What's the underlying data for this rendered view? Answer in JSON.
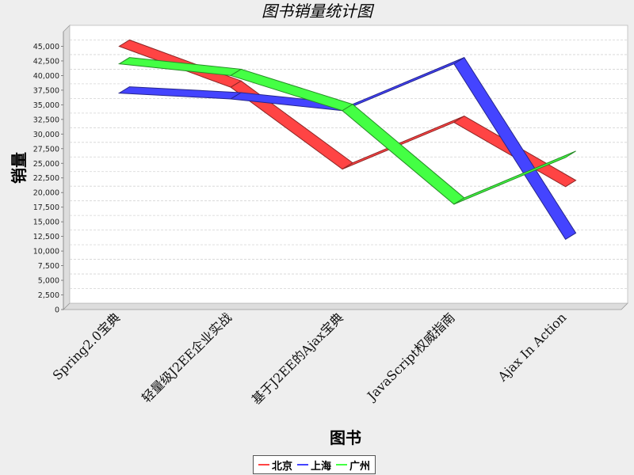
{
  "chart_data": {
    "type": "line",
    "title": "图书销量统计图",
    "xlabel": "图书",
    "ylabel": "销量",
    "categories": [
      "Spring2.0宝典",
      "轻量级J2EE企业实战",
      "基于J2EE的Ajax宝典",
      "JavaScript权威指南",
      "Ajax In Action"
    ],
    "series": [
      {
        "name": "北京",
        "color": "#ff4444",
        "values": [
          45000,
          38000,
          24000,
          32000,
          21000
        ]
      },
      {
        "name": "上海",
        "color": "#4444ff",
        "values": [
          37000,
          36000,
          34000,
          42000,
          12000
        ]
      },
      {
        "name": "广州",
        "color": "#44ff44",
        "values": [
          42000,
          40000,
          34000,
          18000,
          26000
        ]
      }
    ],
    "ylim": [
      0,
      47500
    ],
    "yticks": [
      "0",
      "2,500",
      "5,000",
      "7,500",
      "10,000",
      "12,500",
      "15,000",
      "17,500",
      "20,000",
      "22,500",
      "25,000",
      "27,500",
      "30,000",
      "32,500",
      "35,000",
      "37,500",
      "40,000",
      "42,500",
      "45,000"
    ],
    "ytick_values": [
      0,
      2500,
      5000,
      7500,
      10000,
      12500,
      15000,
      17500,
      20000,
      22500,
      25000,
      27500,
      30000,
      32500,
      35000,
      37500,
      40000,
      42500,
      45000
    ],
    "grid": true,
    "legend_position": "bottom",
    "style": "3d-ribbon"
  }
}
